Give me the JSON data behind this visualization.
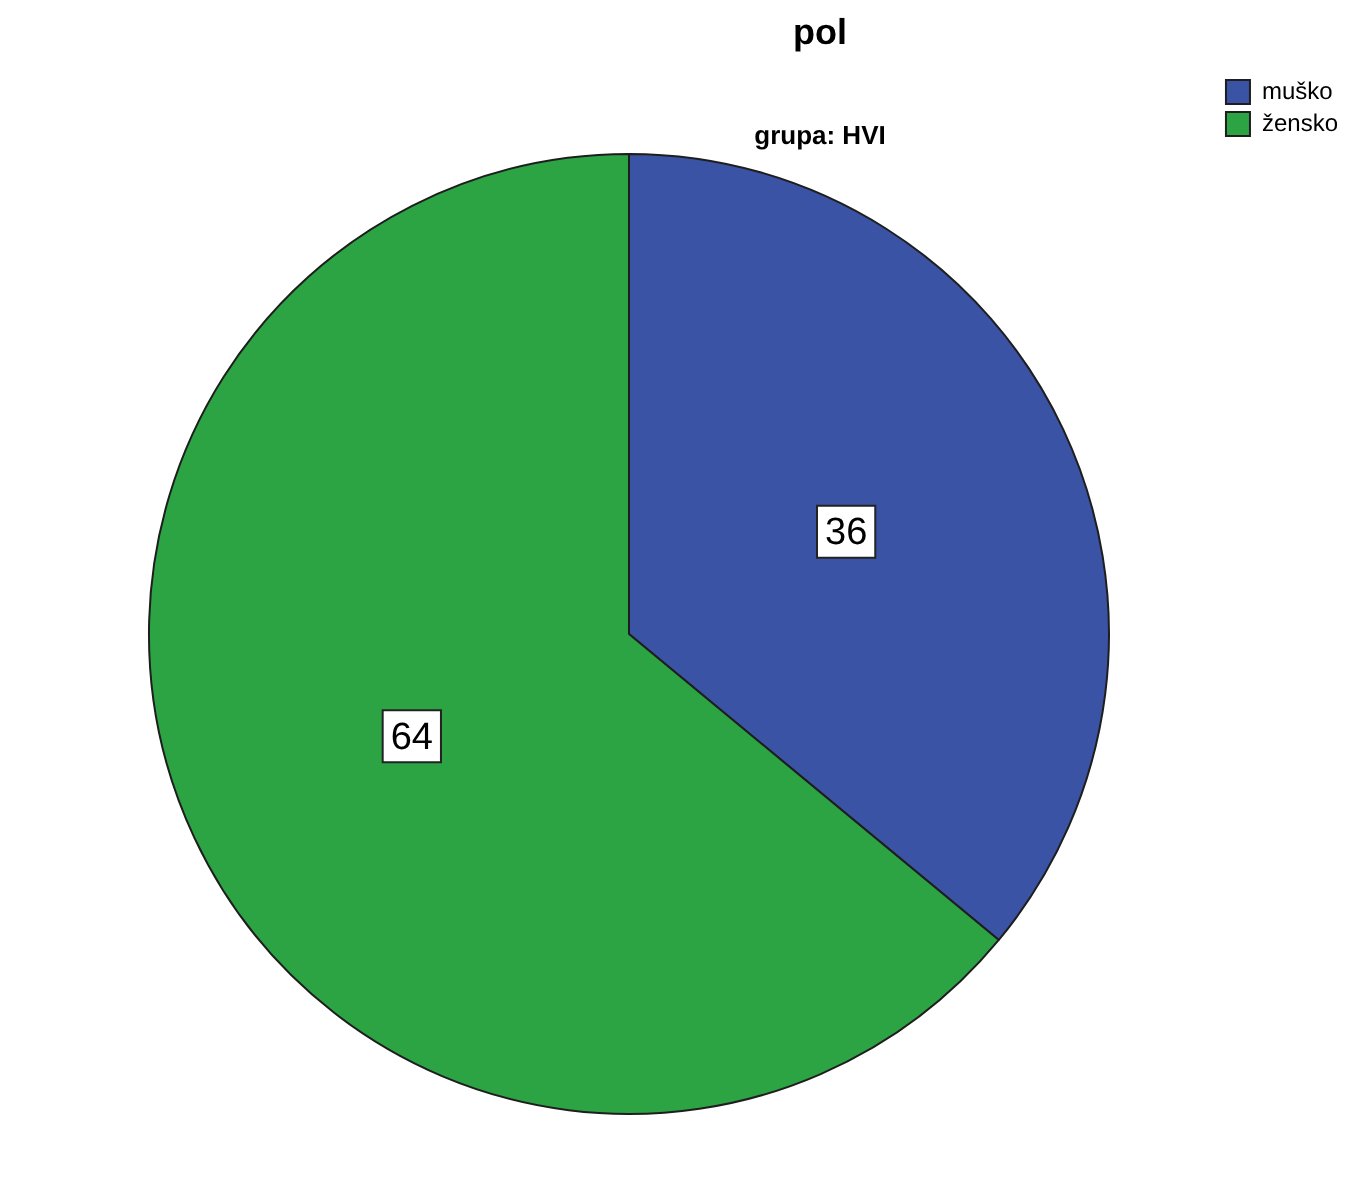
{
  "chart_data": {
    "type": "pie",
    "title": "pol",
    "subtitle": "grupa: HVI",
    "categories": [
      "muško",
      "žensko"
    ],
    "values": [
      36,
      64
    ],
    "colors": [
      "#3a53a4",
      "#2ca444"
    ],
    "data_labels": true,
    "legend": "top right"
  }
}
